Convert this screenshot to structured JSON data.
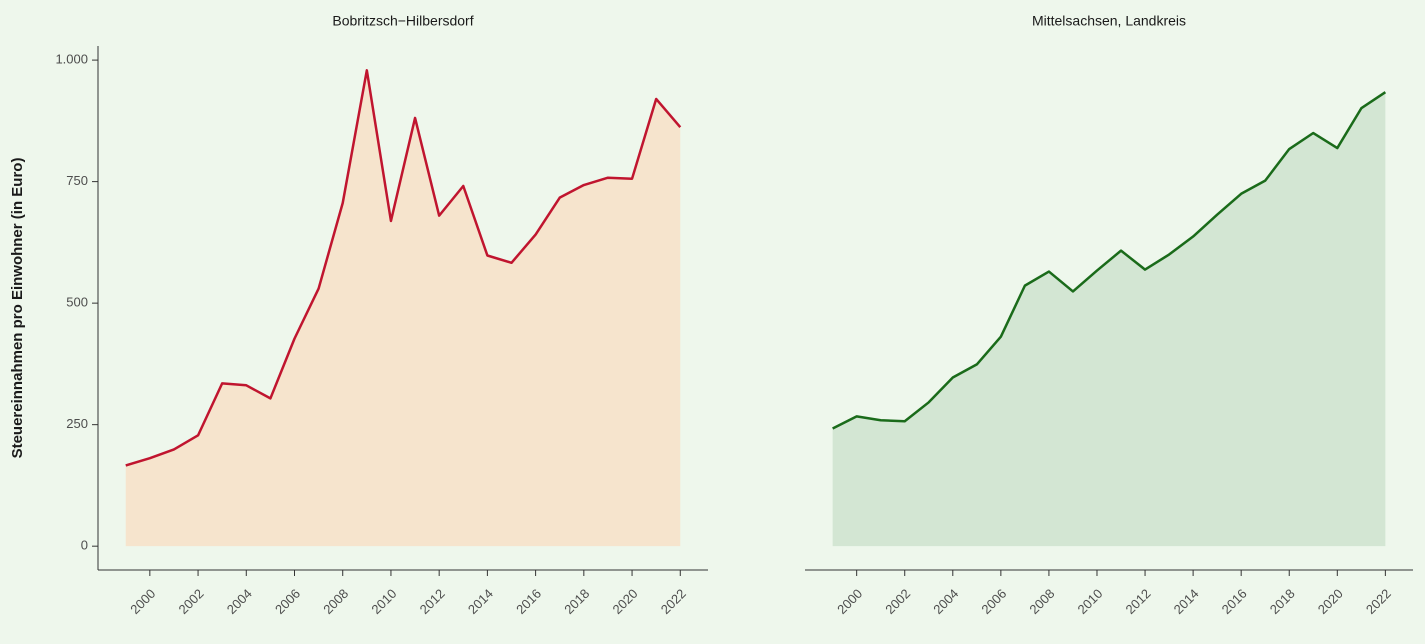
{
  "chart_data": [
    {
      "type": "area",
      "title": "Bobritzsch−Hilbersdorf",
      "ylabel": "Steuereinnahmen pro Einwohner (in Euro)",
      "x": [
        1999,
        2000,
        2001,
        2002,
        2003,
        2004,
        2005,
        2006,
        2007,
        2008,
        2009,
        2010,
        2011,
        2012,
        2013,
        2014,
        2015,
        2016,
        2017,
        2018,
        2019,
        2020,
        2021,
        2022
      ],
      "values": [
        166,
        181,
        199,
        228,
        335,
        331,
        304,
        427,
        530,
        706,
        979,
        669,
        881,
        680,
        741,
        598,
        583,
        641,
        717,
        743,
        758,
        756,
        920,
        862
      ],
      "color": "#c0152f",
      "fill_color": "#f6e4cd",
      "xlim": [
        1997.85,
        2023.15
      ],
      "xticks": [
        2000,
        2002,
        2004,
        2006,
        2008,
        2010,
        2012,
        2014,
        2016,
        2018,
        2020,
        2022
      ],
      "ylim": [
        -49,
        1029
      ],
      "yticks": [
        0,
        250,
        500,
        750,
        {
          "value": 1000,
          "label": "1.000"
        }
      ]
    },
    {
      "type": "area",
      "title": "Mittelsachsen, Landkreis",
      "x": [
        1999,
        2000,
        2001,
        2002,
        2003,
        2004,
        2005,
        2006,
        2007,
        2008,
        2009,
        2010,
        2011,
        2012,
        2013,
        2014,
        2015,
        2016,
        2017,
        2018,
        2019,
        2020,
        2021,
        2022
      ],
      "values": [
        242,
        267,
        259,
        257,
        296,
        347,
        374,
        431,
        536,
        565,
        524,
        567,
        608,
        569,
        600,
        637,
        682,
        725,
        752,
        817,
        850,
        819,
        901,
        934
      ],
      "color": "#1a6b1a",
      "fill_color": "#d3e6d3",
      "xlim": [
        1997.85,
        2023.15
      ],
      "xticks": [
        2000,
        2002,
        2004,
        2006,
        2008,
        2010,
        2012,
        2014,
        2016,
        2018,
        2020,
        2022
      ],
      "ylim": [
        -49,
        1029
      ]
    }
  ]
}
